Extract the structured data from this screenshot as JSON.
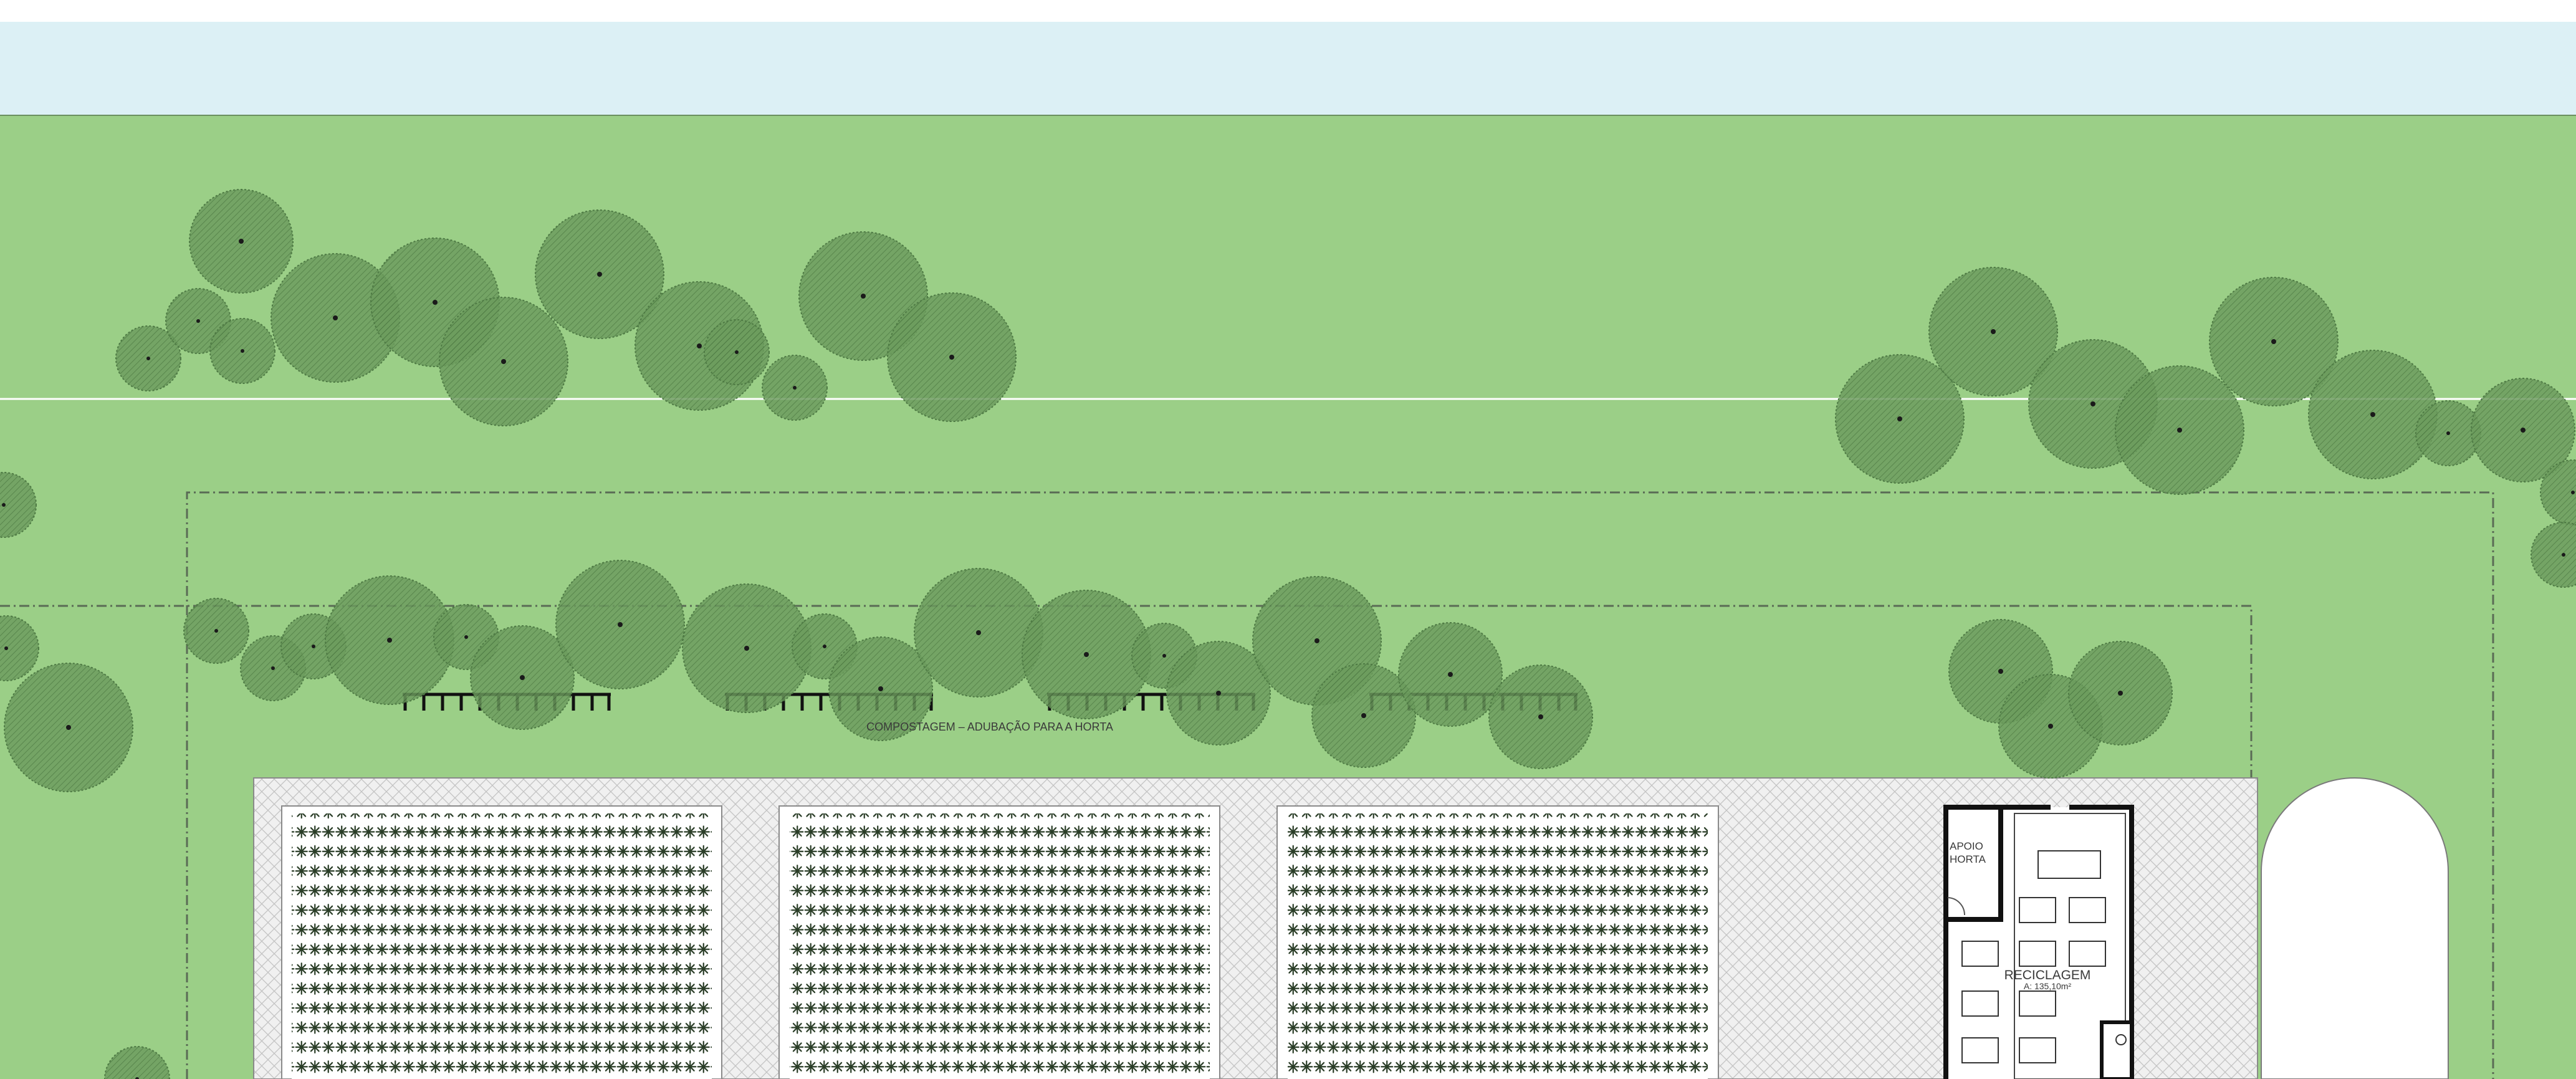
{
  "labels": {
    "compost": "COMPOSTAGEM  –  ADUBAÇÃO  PARA  A  HORTA",
    "apoio_line1": "APOIO",
    "apoio_line2": "HORTA",
    "recycling": "RECICLAGEM",
    "recycling_area": "A: 135,10m²"
  },
  "colors": {
    "sky": "#dcf0f5",
    "lawn": "#9bcf87",
    "tree_canopy": "#5f8f52",
    "tree_hatch": "#4a7640",
    "paving": "#f0f0f0",
    "paving_pattern": "#c4c4c4",
    "plant": "#2a3d27",
    "wall": "#111111"
  },
  "icons": {
    "tree": "tree-canopy-icon",
    "plant": "crop-plant-icon",
    "compost": "compost-bin-icon"
  }
}
